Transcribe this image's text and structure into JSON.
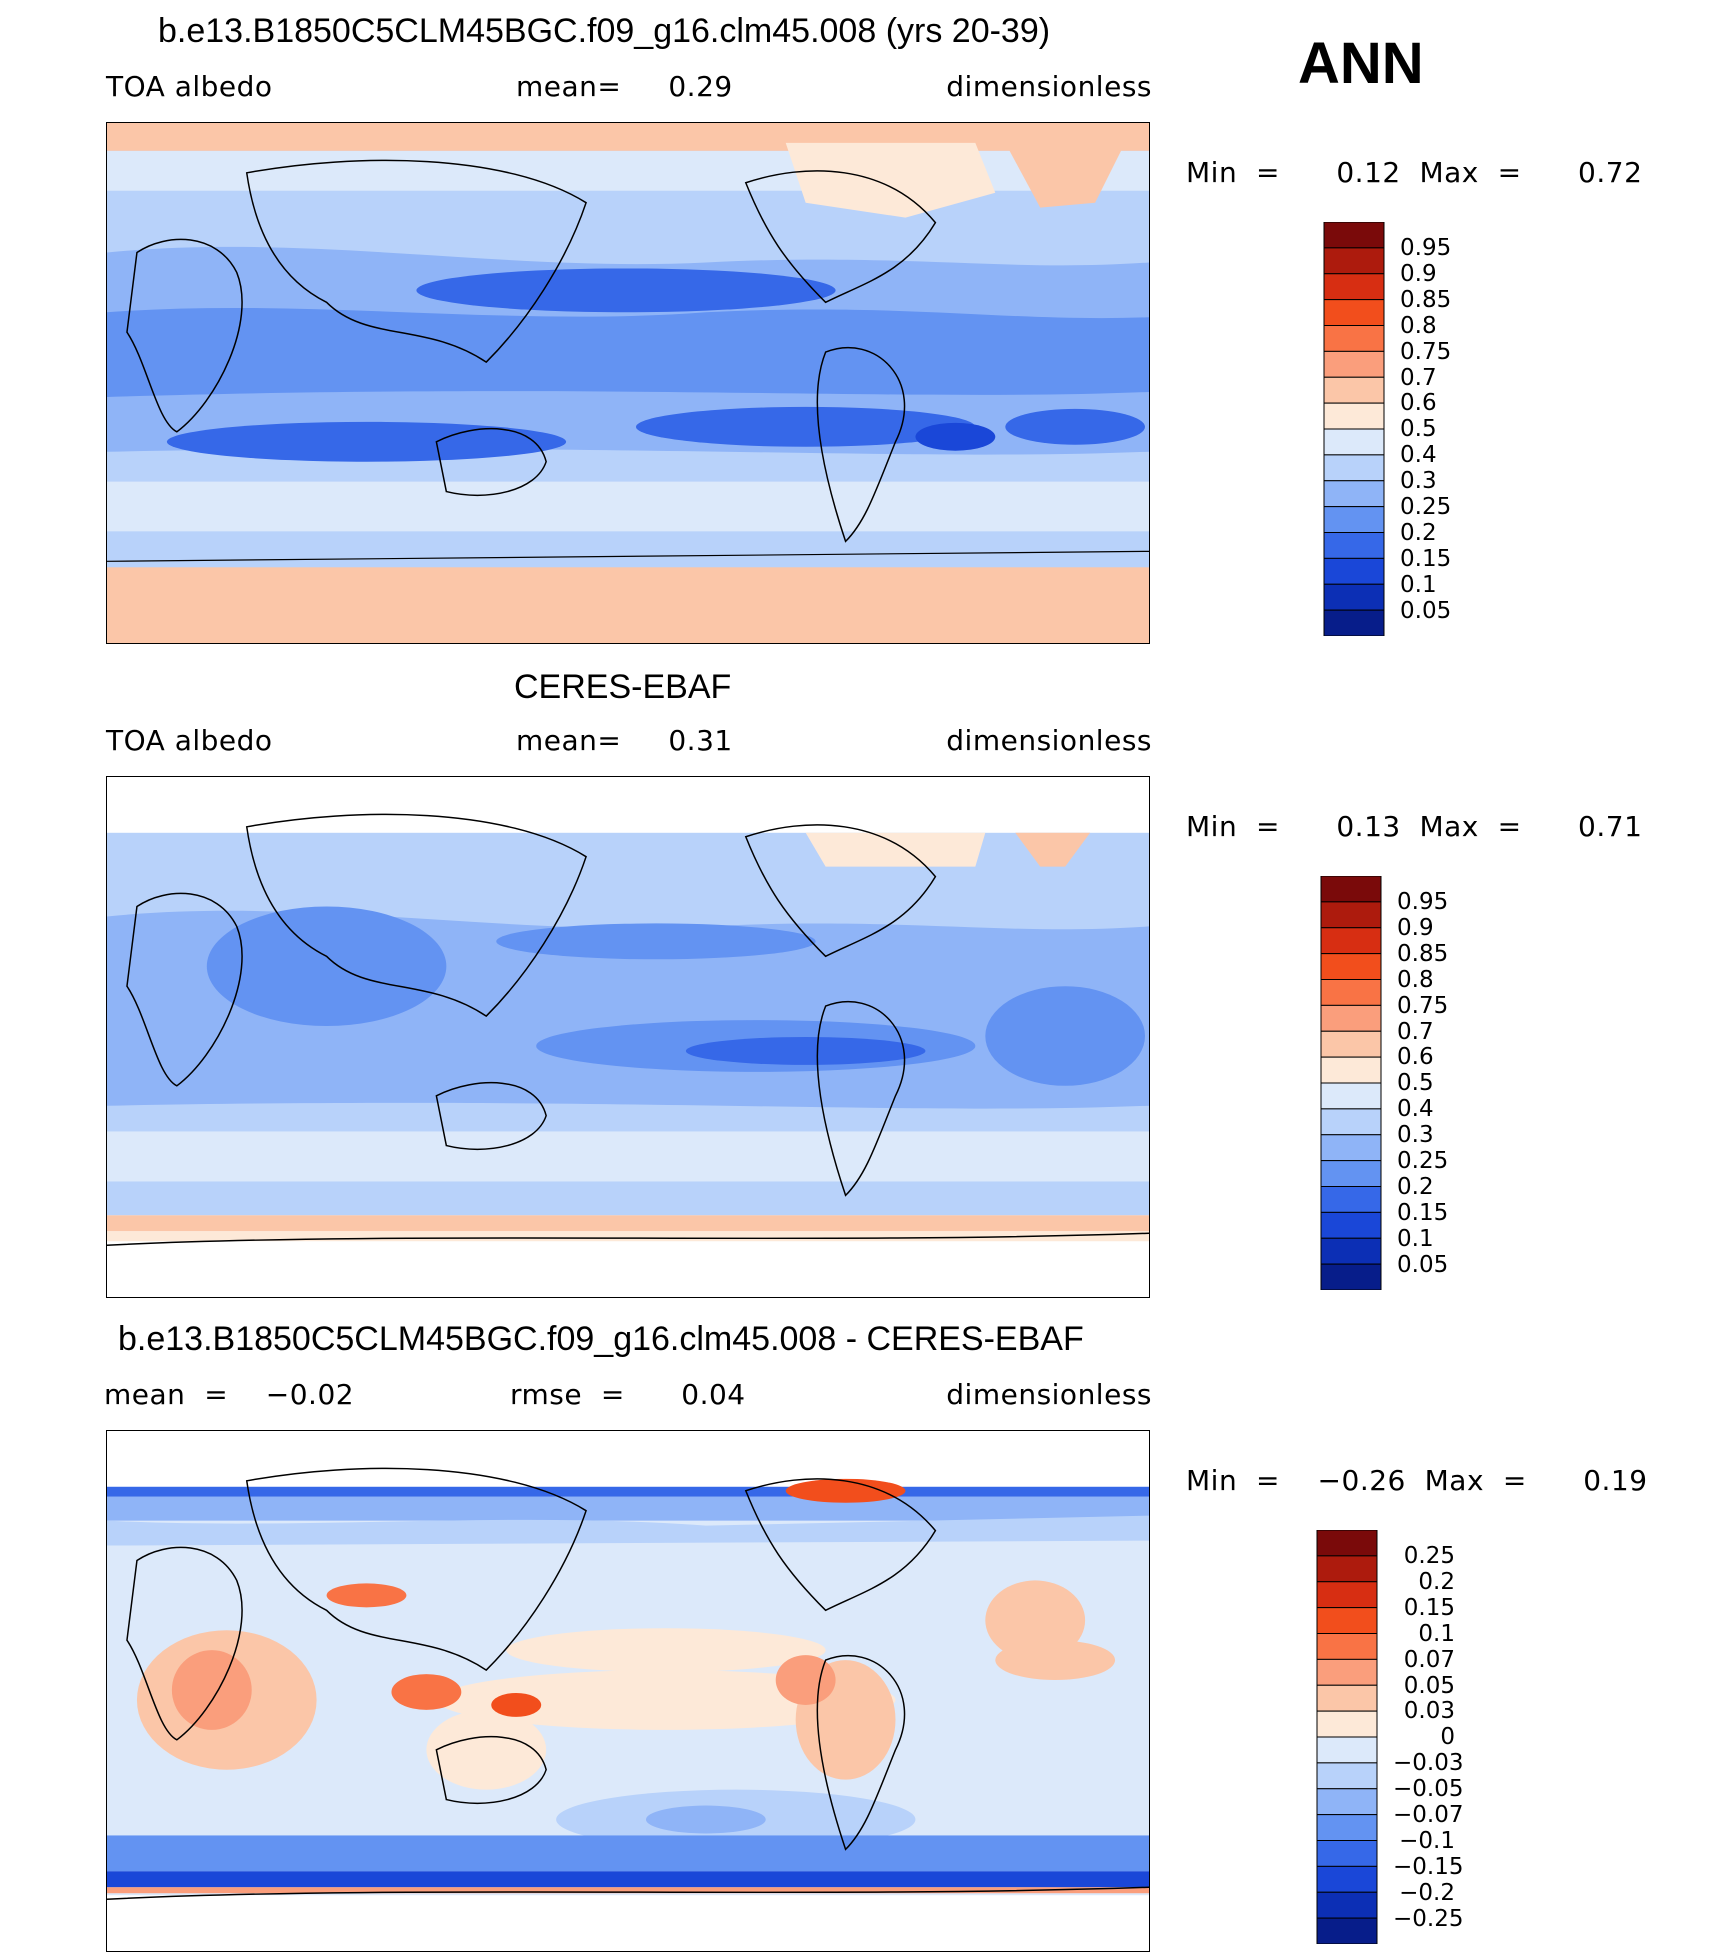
{
  "season": "ANN",
  "panels": [
    {
      "title": "b.e13.B1850C5CLM45BGC.f09_g16.clm45.008 (yrs 20-39)",
      "left_label": "TOA  albedo",
      "center_label": "mean=     0.29",
      "units": "dimensionless",
      "minmax": "Min  =      0.12  Max  =      0.72",
      "colorbar_ticks": [
        "0.95",
        "0.9",
        "0.85",
        "0.8",
        "0.75",
        "0.7",
        "0.6",
        "0.5",
        "0.4",
        "0.3",
        "0.25",
        "0.2",
        "0.15",
        "0.1",
        "0.05"
      ]
    },
    {
      "title": "CERES-EBAF",
      "left_label": "TOA  albedo",
      "center_label": "mean=     0.31",
      "units": "dimensionless",
      "minmax": "Min  =      0.13  Max  =      0.71",
      "colorbar_ticks": [
        "0.95",
        "0.9",
        "0.85",
        "0.8",
        "0.75",
        "0.7",
        "0.6",
        "0.5",
        "0.4",
        "0.3",
        "0.25",
        "0.2",
        "0.15",
        "0.1",
        "0.05"
      ]
    },
    {
      "title": "b.e13.B1850C5CLM45BGC.f09_g16.clm45.008 - CERES-EBAF",
      "left_label": "mean  =    −0.02",
      "center_label": "rmse  =      0.04",
      "units": "dimensionless",
      "minmax": "Min  =    −0.26  Max  =      0.19",
      "colorbar_ticks": [
        "0.25",
        "0.2",
        "0.15",
        "0.1",
        "0.07",
        "0.05",
        "0.03",
        "0",
        "−0.03",
        "−0.05",
        "−0.07",
        "−0.1",
        "−0.15",
        "−0.2",
        "−0.25"
      ]
    }
  ],
  "colorbar_colors": [
    "#7a0a0a",
    "#ad1b0d",
    "#d72e12",
    "#f24e1c",
    "#f97345",
    "#fa9e7c",
    "#fbc6a8",
    "#fde9d8",
    "#dce9fa",
    "#b8d2fa",
    "#8fb4f7",
    "#6393f2",
    "#3668e8",
    "#1a47d8",
    "#0c2fb5",
    "#071d8a"
  ]
}
